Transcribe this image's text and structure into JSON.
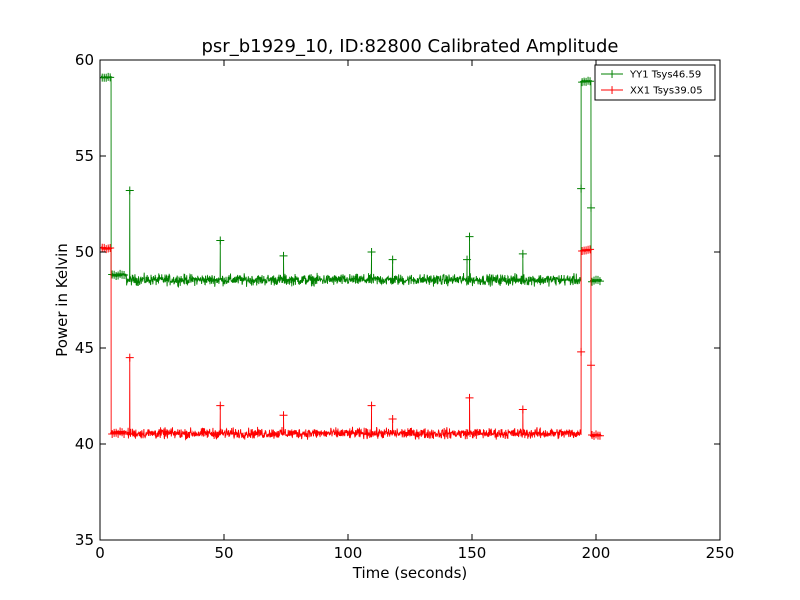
{
  "chart_data": {
    "type": "line",
    "title": "psr_b1929_10, ID:82800 Calibrated Amplitude",
    "xlabel": "Time (seconds)",
    "ylabel": "Power in Kelvin",
    "xlim": [
      0,
      250
    ],
    "ylim": [
      35,
      60
    ],
    "xticks": [
      0,
      50,
      100,
      150,
      200,
      250
    ],
    "yticks": [
      35,
      40,
      45,
      50,
      55,
      60
    ],
    "grid": false,
    "legend_position": "top-right",
    "series": [
      {
        "name": "YY1 Tsys46.59",
        "color": "#008000",
        "marker": "+",
        "segments": [
          {
            "x_start": 0.5,
            "x_end": 4.5,
            "level": 59.1,
            "noise": 0.08
          },
          {
            "x_start": 4.5,
            "x_end": 10.5,
            "level": 48.8,
            "noise": 0.12
          },
          {
            "x_start": 10.5,
            "x_end": 194,
            "level": 48.55,
            "noise": 0.42
          },
          {
            "x_start": 194,
            "x_end": 198,
            "level": 58.9,
            "noise": 0.08
          },
          {
            "x_start": 198,
            "x_end": 202,
            "level": 48.5,
            "noise": 0.12
          }
        ],
        "spikes": [
          [
            12,
            53.2
          ],
          [
            48.5,
            50.6
          ],
          [
            74,
            49.8
          ],
          [
            109.5,
            50.0
          ],
          [
            118,
            49.6
          ],
          [
            148,
            49.6
          ],
          [
            149,
            50.8
          ],
          [
            170.5,
            49.9
          ],
          [
            194,
            53.3
          ],
          [
            198,
            52.3
          ]
        ]
      },
      {
        "name": "XX1 Tsys39.05",
        "color": "#ff0000",
        "marker": "+",
        "segments": [
          {
            "x_start": 0.5,
            "x_end": 4.5,
            "level": 50.2,
            "noise": 0.08
          },
          {
            "x_start": 4.5,
            "x_end": 10.5,
            "level": 40.6,
            "noise": 0.12
          },
          {
            "x_start": 10.5,
            "x_end": 194,
            "level": 40.55,
            "noise": 0.4
          },
          {
            "x_start": 194,
            "x_end": 198,
            "level": 50.1,
            "noise": 0.08
          },
          {
            "x_start": 198,
            "x_end": 202,
            "level": 40.45,
            "noise": 0.12
          }
        ],
        "spikes": [
          [
            12,
            44.5
          ],
          [
            48.5,
            42.0
          ],
          [
            74,
            41.5
          ],
          [
            109.5,
            42.0
          ],
          [
            118,
            41.3
          ],
          [
            149,
            42.4
          ],
          [
            170.5,
            41.8
          ],
          [
            194,
            44.8
          ],
          [
            198,
            44.1
          ]
        ]
      }
    ]
  }
}
